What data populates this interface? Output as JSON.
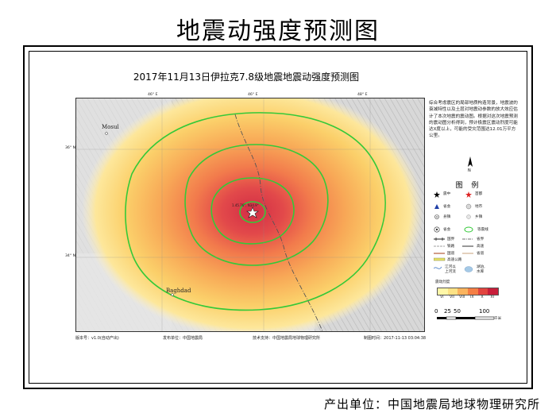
{
  "page_title": "地震动强度预测图",
  "map_title": "2017年11月13日伊拉克7.8级地震地震动强度预测图",
  "map": {
    "top_ticks": [
      "46° E",
      "46° E",
      "48° E"
    ],
    "left_ticks": [
      "36° N",
      "34° N"
    ],
    "cities": [
      "Mosul",
      "Baghdad"
    ],
    "epicenter_label": "1.45.76°, N34.9°",
    "colors": {
      "high": "#d6344a",
      "mid": "#f5834a",
      "low": "#fbd56a",
      "contour": "#34c938"
    }
  },
  "footer": {
    "version": "版本号：v1.0(自动产出)",
    "publisher": "发布单位：中国地震局",
    "support": "技术支持：中国地震局地球物理研究所",
    "time": "制图时间：2017-11-13 03:04:38"
  },
  "note": "综合考虑震区的局部地质构造背景，地震波的衰减特性以及土层对地震动参数的放大效应估计了本次地震的震动图。根据对这次地震预测的震动图分析得到，预计极震区震动烈度可能达X度以上，可能的受灾范围达12.01万平方公里。",
  "legend": {
    "title": "图 例",
    "items": {
      "epicenter": "震中",
      "capital": "首都",
      "province_capital": "省会",
      "prefecture_city": "地市",
      "county": "县镇",
      "township": "乡镇",
      "provincial_gov": "省会",
      "contour": "等震线",
      "country_border": "国界",
      "province_border": "省界",
      "railway": "铁路",
      "highway": "高速",
      "national_road": "国道",
      "provincial_road": "省道",
      "expressway": "高速公路",
      "lake": "湖泊,\n水库",
      "river": "江河以\n上河流",
      "intensity_label": "震动烈度"
    },
    "intensity_scale": [
      "VI",
      "VII",
      "VIII",
      "IX",
      "X",
      "XI"
    ],
    "intensity_colors": [
      "#fff7a8",
      "#fde285",
      "#fbb45e",
      "#f57f45",
      "#e2453f",
      "#c81e3a"
    ]
  },
  "scale_bar": {
    "labels": [
      "0",
      "25",
      "50",
      "100"
    ],
    "unit": "千米"
  },
  "producer": "产出单位：中国地震局地球物理研究所"
}
